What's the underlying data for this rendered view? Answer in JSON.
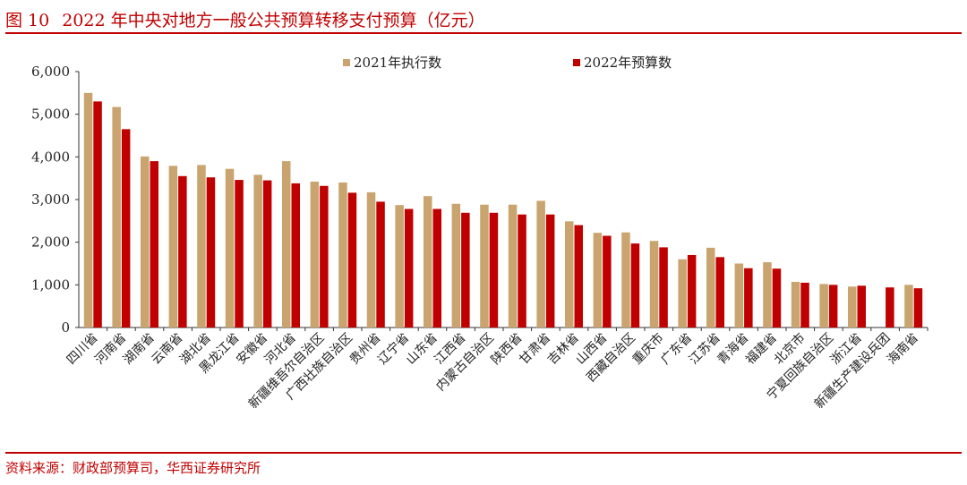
{
  "header": {
    "figure_no": "图 10",
    "title": "2022 年中央对地方一般公共预算转移支付预算（亿元）"
  },
  "footer": {
    "source": "资料来源：财政部预算司，华西证券研究所"
  },
  "colors": {
    "accent": "#c00000",
    "series_2021": "#c9a46e",
    "series_2022": "#c00000"
  },
  "chart_data": {
    "type": "bar",
    "title": "",
    "xlabel": "",
    "ylabel": "",
    "ylim": [
      0,
      6000
    ],
    "yticks": [
      "0",
      "1,000",
      "2,000",
      "3,000",
      "4,000",
      "5,000",
      "6,000"
    ],
    "grid": false,
    "legend_position": "top-center",
    "categories": [
      "四川省",
      "河南省",
      "湖南省",
      "云南省",
      "湖北省",
      "黑龙江省",
      "安徽省",
      "河北省",
      "新疆维吾尔自治区",
      "广西壮族自治区",
      "贵州省",
      "辽宁省",
      "山东省",
      "江西省",
      "内蒙古自治区",
      "陕西省",
      "甘肃省",
      "吉林省",
      "山西省",
      "西藏自治区",
      "重庆市",
      "广东省",
      "江苏省",
      "青海省",
      "福建省",
      "北京市",
      "宁夏回族自治区",
      "浙江省",
      "新疆生产建设兵团",
      "海南省"
    ],
    "series": [
      {
        "name": "2021年执行数",
        "values": [
          5500,
          5170,
          4010,
          3790,
          3810,
          3720,
          3580,
          3900,
          3420,
          3400,
          3170,
          2870,
          3080,
          2900,
          2880,
          2880,
          2970,
          2490,
          2220,
          2230,
          2030,
          1600,
          1870,
          1500,
          1530,
          1070,
          1020,
          960,
          null,
          1000
        ]
      },
      {
        "name": "2022年预算数",
        "values": [
          5300,
          4650,
          3900,
          3550,
          3520,
          3460,
          3450,
          3380,
          3320,
          3160,
          2950,
          2780,
          2780,
          2690,
          2690,
          2650,
          2650,
          2400,
          2150,
          1970,
          1880,
          1700,
          1650,
          1390,
          1380,
          1050,
          1000,
          980,
          940,
          920
        ]
      }
    ]
  }
}
